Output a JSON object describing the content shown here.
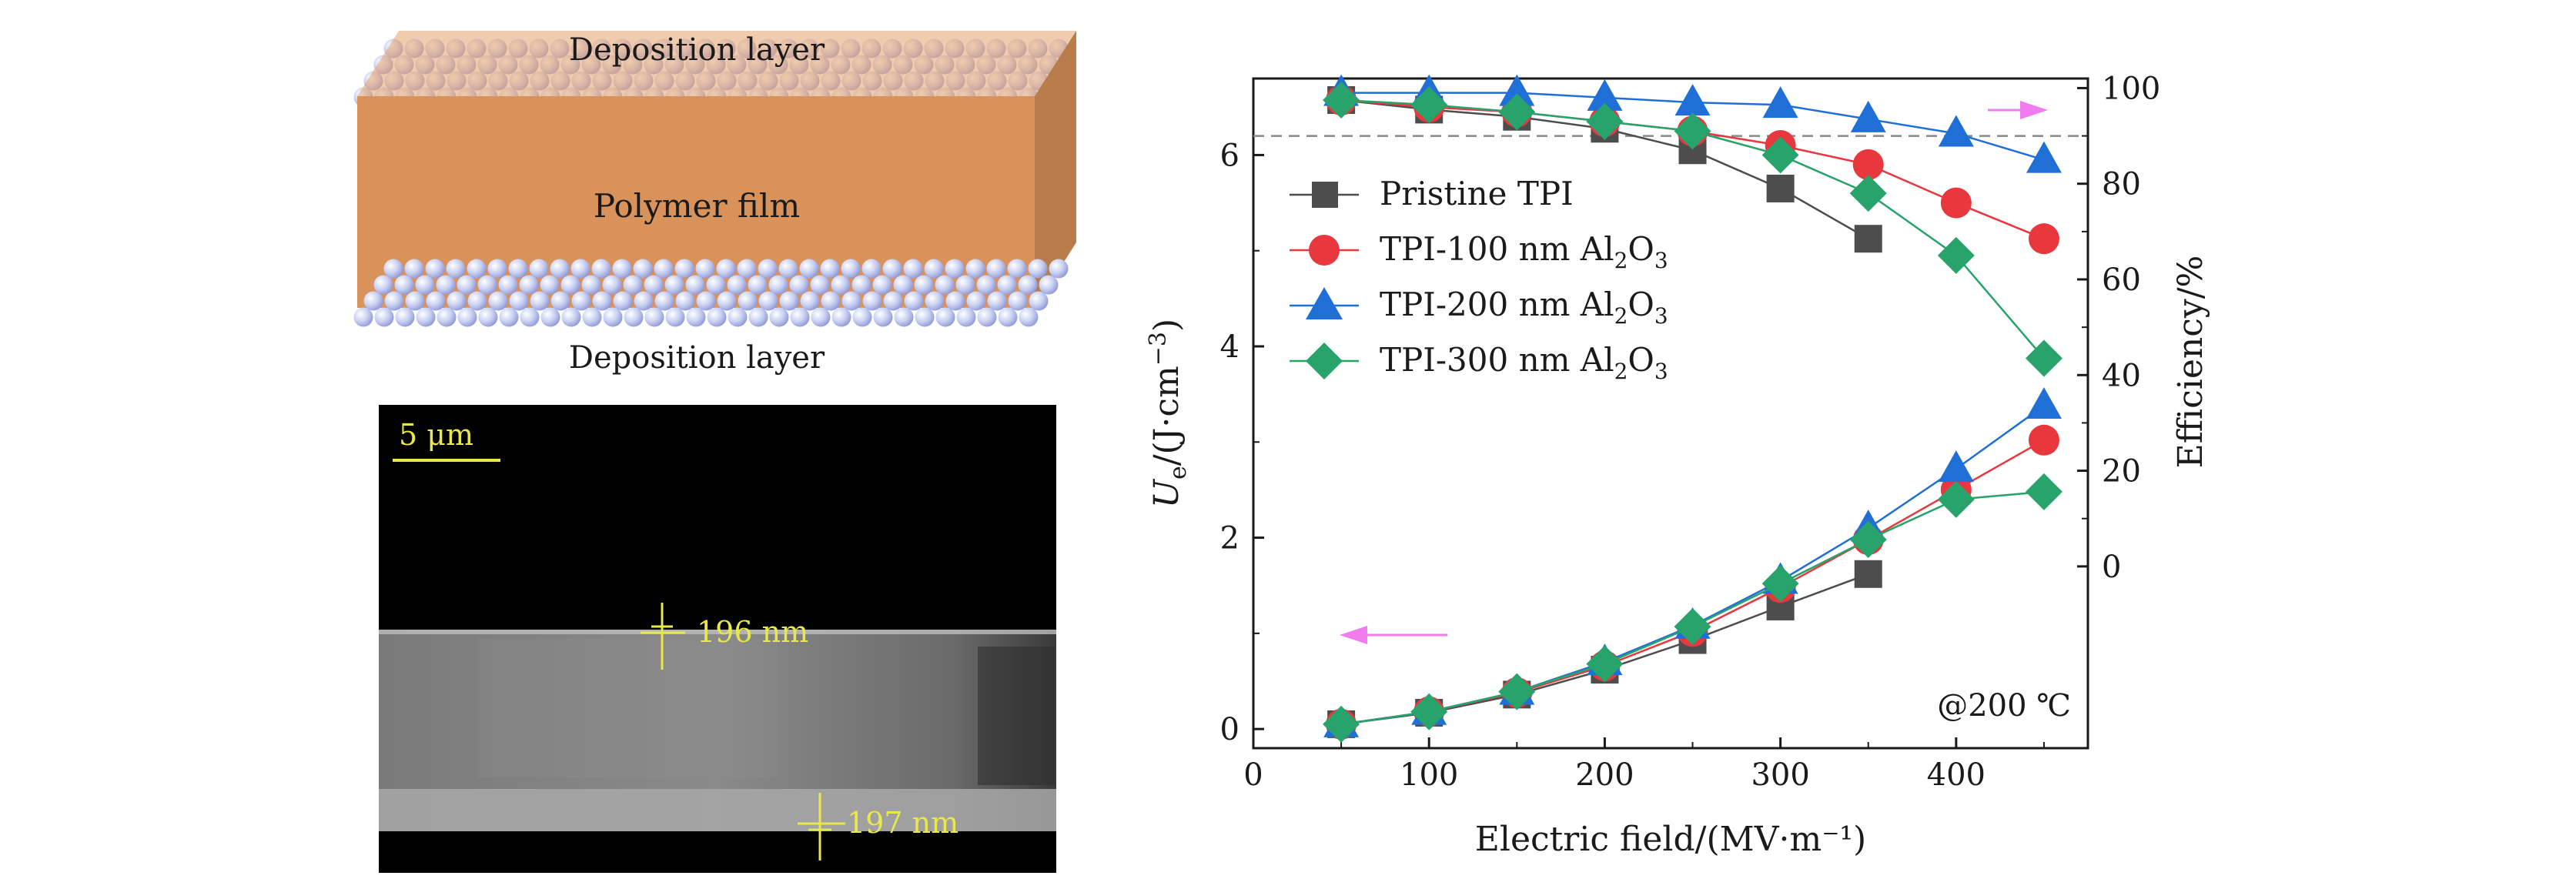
{
  "schematic": {
    "top_label": "Deposition layer",
    "middle_label": "Polymer film",
    "bottom_label": "Deposition layer"
  },
  "sem": {
    "scale_bar": "5 μm",
    "thickness_top": "196 nm",
    "thickness_bottom": "197 nm"
  },
  "colors": {
    "pristine": "#4d4d4d",
    "al100": "#e8383d",
    "al200": "#1f6fd6",
    "al300": "#27a36b",
    "arrow": "#f07cf0",
    "film": "#d9935a"
  },
  "chart_data": {
    "type": "scatter",
    "title": "",
    "xlabel": "Electric field/(MV·m⁻¹)",
    "ylabel_left": {
      "symbol": "U",
      "sub": "e",
      "unit": "/(J·cm",
      "sup": "−3",
      "close": ")"
    },
    "ylabel_right": "Efficiency/%",
    "annotation": "@200 ℃",
    "xlim": [
      0,
      475
    ],
    "ylim_left": [
      -0.2,
      6.8
    ],
    "ylim_right": [
      -38,
      102
    ],
    "xticks": [
      0,
      100,
      200,
      300,
      400
    ],
    "yticks_left": [
      0,
      2,
      4,
      6
    ],
    "yticks_right": [
      0,
      20,
      40,
      60,
      80,
      100
    ],
    "reference_line_efficiency": 90,
    "legend": {
      "position": "upper-left",
      "entries": [
        {
          "name": "Pristine TPI",
          "parts": [
            "Pristine TPI"
          ]
        },
        {
          "name": "TPI-100 nm Al2O3",
          "parts": [
            "TPI-100 nm Al",
            "2",
            "O",
            "3"
          ]
        },
        {
          "name": "TPI-200 nm Al2O3",
          "parts": [
            "TPI-200 nm Al",
            "2",
            "O",
            "3"
          ]
        },
        {
          "name": "TPI-300 nm Al2O3",
          "parts": [
            "TPI-300 nm Al",
            "2",
            "O",
            "3"
          ]
        }
      ]
    },
    "energy_series": [
      {
        "name": "Pristine TPI",
        "marker": "square",
        "x": [
          50,
          100,
          150,
          200,
          250,
          300,
          350
        ],
        "values": [
          0.05,
          0.17,
          0.36,
          0.62,
          0.93,
          1.28,
          1.62
        ]
      },
      {
        "name": "TPI-100 nm Al2O3",
        "marker": "circle",
        "x": [
          50,
          100,
          150,
          200,
          250,
          300,
          350,
          400,
          450
        ],
        "values": [
          0.05,
          0.18,
          0.38,
          0.66,
          1.02,
          1.48,
          1.98,
          2.5,
          3.02
        ]
      },
      {
        "name": "TPI-200 nm Al2O3",
        "marker": "triangle",
        "x": [
          50,
          100,
          150,
          200,
          250,
          300,
          350,
          400,
          450
        ],
        "values": [
          0.05,
          0.18,
          0.39,
          0.7,
          1.08,
          1.55,
          2.1,
          2.72,
          3.38
        ]
      },
      {
        "name": "TPI-300 nm Al2O3",
        "marker": "diamond",
        "x": [
          50,
          100,
          150,
          200,
          250,
          300,
          350,
          400,
          450
        ],
        "values": [
          0.05,
          0.18,
          0.39,
          0.68,
          1.07,
          1.52,
          1.98,
          2.4,
          2.48
        ]
      }
    ],
    "efficiency_series": [
      {
        "name": "Pristine TPI",
        "marker": "square",
        "x": [
          50,
          100,
          150,
          200,
          250,
          300,
          350
        ],
        "values": [
          97.5,
          95.5,
          94,
          91.5,
          87,
          79,
          68.5
        ]
      },
      {
        "name": "TPI-100 nm Al2O3",
        "marker": "circle",
        "x": [
          50,
          100,
          150,
          200,
          250,
          300,
          350,
          400,
          450
        ],
        "values": [
          97.5,
          96,
          95,
          93,
          91,
          88,
          84,
          76,
          68.5
        ]
      },
      {
        "name": "TPI-200 nm Al2O3",
        "marker": "triangle",
        "x": [
          50,
          100,
          150,
          200,
          250,
          300,
          350,
          400,
          450
        ],
        "values": [
          99,
          99,
          99,
          98,
          97,
          96.5,
          93.5,
          90.5,
          85
        ]
      },
      {
        "name": "TPI-300 nm Al2O3",
        "marker": "diamond",
        "x": [
          50,
          100,
          150,
          200,
          250,
          300,
          350,
          400,
          450
        ],
        "values": [
          97.5,
          96.5,
          95,
          93,
          91,
          86,
          78,
          65,
          43.5
        ]
      }
    ]
  }
}
